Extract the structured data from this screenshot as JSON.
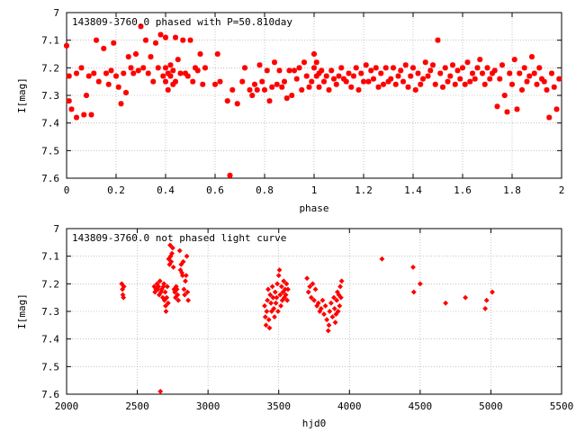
{
  "chart_data": [
    {
      "type": "scatter",
      "title": "143809-3760.0 phased with P=50.810day",
      "xlabel": "phase",
      "ylabel": "I[mag]",
      "xlim": [
        0,
        2
      ],
      "ylim": [
        7.6,
        7.0
      ],
      "y_inverted": true,
      "xticks": [
        "0",
        "0.2",
        "0.4",
        "0.6",
        "0.8",
        "1",
        "1.2",
        "1.4",
        "1.6",
        "1.8",
        "2"
      ],
      "xtick_values": [
        0,
        0.2,
        0.4,
        0.6,
        0.8,
        1.0,
        1.2,
        1.4,
        1.6,
        1.8,
        2.0
      ],
      "yticks": [
        "7",
        "7.1",
        "7.2",
        "7.3",
        "7.4",
        "7.5",
        "7.6"
      ],
      "ytick_values": [
        7.0,
        7.1,
        7.2,
        7.3,
        7.4,
        7.5,
        7.6
      ],
      "marker": "star",
      "color": "#ff0000",
      "points": [
        [
          0.0,
          7.12
        ],
        [
          0.01,
          7.23
        ],
        [
          0.01,
          7.32
        ],
        [
          0.02,
          7.35
        ],
        [
          0.04,
          7.38
        ],
        [
          0.04,
          7.22
        ],
        [
          0.06,
          7.2
        ],
        [
          0.07,
          7.37
        ],
        [
          0.08,
          7.3
        ],
        [
          0.09,
          7.23
        ],
        [
          0.1,
          7.37
        ],
        [
          0.11,
          7.22
        ],
        [
          0.12,
          7.1
        ],
        [
          0.13,
          7.25
        ],
        [
          0.15,
          7.13
        ],
        [
          0.16,
          7.22
        ],
        [
          0.17,
          7.26
        ],
        [
          0.18,
          7.21
        ],
        [
          0.19,
          7.11
        ],
        [
          0.2,
          7.23
        ],
        [
          0.21,
          7.27
        ],
        [
          0.22,
          7.33
        ],
        [
          0.23,
          7.22
        ],
        [
          0.24,
          7.29
        ],
        [
          0.25,
          7.16
        ],
        [
          0.26,
          7.2
        ],
        [
          0.27,
          7.22
        ],
        [
          0.28,
          7.15
        ],
        [
          0.29,
          7.21
        ],
        [
          0.3,
          7.05
        ],
        [
          0.31,
          7.2
        ],
        [
          0.32,
          7.1
        ],
        [
          0.33,
          7.22
        ],
        [
          0.34,
          7.16
        ],
        [
          0.35,
          7.25
        ],
        [
          0.36,
          7.11
        ],
        [
          0.37,
          7.2
        ],
        [
          0.38,
          7.08
        ],
        [
          0.39,
          7.23
        ],
        [
          0.4,
          7.09
        ],
        [
          0.4,
          7.25
        ],
        [
          0.4,
          7.2
        ],
        [
          0.41,
          7.22
        ],
        [
          0.41,
          7.28
        ],
        [
          0.42,
          7.23
        ],
        [
          0.42,
          7.19
        ],
        [
          0.43,
          7.26
        ],
        [
          0.43,
          7.21
        ],
        [
          0.44,
          7.09
        ],
        [
          0.44,
          7.25
        ],
        [
          0.45,
          7.17
        ],
        [
          0.46,
          7.22
        ],
        [
          0.47,
          7.1
        ],
        [
          0.48,
          7.22
        ],
        [
          0.49,
          7.23
        ],
        [
          0.5,
          7.1
        ],
        [
          0.51,
          7.25
        ],
        [
          0.52,
          7.2
        ],
        [
          0.53,
          7.21
        ],
        [
          0.54,
          7.15
        ],
        [
          0.55,
          7.26
        ],
        [
          0.56,
          7.2
        ],
        [
          0.6,
          7.26
        ],
        [
          0.61,
          7.15
        ],
        [
          0.62,
          7.25
        ],
        [
          0.65,
          7.32
        ],
        [
          0.66,
          7.59
        ],
        [
          0.67,
          7.28
        ],
        [
          0.69,
          7.33
        ],
        [
          0.71,
          7.25
        ],
        [
          0.72,
          7.2
        ],
        [
          0.74,
          7.28
        ],
        [
          0.75,
          7.3
        ],
        [
          0.76,
          7.26
        ],
        [
          0.77,
          7.28
        ],
        [
          0.78,
          7.19
        ],
        [
          0.79,
          7.25
        ],
        [
          0.8,
          7.28
        ],
        [
          0.81,
          7.21
        ],
        [
          0.82,
          7.32
        ],
        [
          0.83,
          7.27
        ],
        [
          0.84,
          7.18
        ],
        [
          0.85,
          7.26
        ],
        [
          0.86,
          7.21
        ],
        [
          0.87,
          7.27
        ],
        [
          0.88,
          7.25
        ],
        [
          0.89,
          7.31
        ],
        [
          0.9,
          7.21
        ],
        [
          0.91,
          7.3
        ],
        [
          0.92,
          7.21
        ],
        [
          0.93,
          7.24
        ],
        [
          0.94,
          7.2
        ],
        [
          0.95,
          7.28
        ],
        [
          0.96,
          7.18
        ],
        [
          0.97,
          7.23
        ],
        [
          0.98,
          7.27
        ],
        [
          0.99,
          7.25
        ],
        [
          1.0,
          7.15
        ],
        [
          1.0,
          7.2
        ],
        [
          1.01,
          7.23
        ],
        [
          1.01,
          7.18
        ],
        [
          1.02,
          7.22
        ],
        [
          1.02,
          7.27
        ],
        [
          1.03,
          7.21
        ],
        [
          1.04,
          7.25
        ],
        [
          1.05,
          7.23
        ],
        [
          1.06,
          7.28
        ],
        [
          1.07,
          7.21
        ],
        [
          1.08,
          7.24
        ],
        [
          1.09,
          7.26
        ],
        [
          1.1,
          7.23
        ],
        [
          1.11,
          7.2
        ],
        [
          1.12,
          7.24
        ],
        [
          1.13,
          7.25
        ],
        [
          1.14,
          7.22
        ],
        [
          1.15,
          7.27
        ],
        [
          1.16,
          7.23
        ],
        [
          1.17,
          7.2
        ],
        [
          1.18,
          7.28
        ],
        [
          1.19,
          7.22
        ],
        [
          1.2,
          7.25
        ],
        [
          1.21,
          7.19
        ],
        [
          1.22,
          7.25
        ],
        [
          1.23,
          7.21
        ],
        [
          1.24,
          7.24
        ],
        [
          1.25,
          7.2
        ],
        [
          1.26,
          7.27
        ],
        [
          1.27,
          7.22
        ],
        [
          1.28,
          7.26
        ],
        [
          1.29,
          7.2
        ],
        [
          1.3,
          7.25
        ],
        [
          1.31,
          7.24
        ],
        [
          1.32,
          7.2
        ],
        [
          1.33,
          7.26
        ],
        [
          1.34,
          7.23
        ],
        [
          1.35,
          7.21
        ],
        [
          1.36,
          7.25
        ],
        [
          1.37,
          7.19
        ],
        [
          1.38,
          7.27
        ],
        [
          1.39,
          7.23
        ],
        [
          1.4,
          7.2
        ],
        [
          1.41,
          7.28
        ],
        [
          1.42,
          7.22
        ],
        [
          1.43,
          7.26
        ],
        [
          1.44,
          7.24
        ],
        [
          1.45,
          7.18
        ],
        [
          1.46,
          7.23
        ],
        [
          1.47,
          7.21
        ],
        [
          1.48,
          7.19
        ],
        [
          1.49,
          7.26
        ],
        [
          1.5,
          7.1
        ],
        [
          1.51,
          7.22
        ],
        [
          1.52,
          7.27
        ],
        [
          1.53,
          7.2
        ],
        [
          1.54,
          7.25
        ],
        [
          1.55,
          7.23
        ],
        [
          1.56,
          7.19
        ],
        [
          1.57,
          7.26
        ],
        [
          1.58,
          7.21
        ],
        [
          1.59,
          7.24
        ],
        [
          1.6,
          7.2
        ],
        [
          1.61,
          7.26
        ],
        [
          1.62,
          7.18
        ],
        [
          1.63,
          7.25
        ],
        [
          1.64,
          7.22
        ],
        [
          1.65,
          7.24
        ],
        [
          1.66,
          7.2
        ],
        [
          1.67,
          7.17
        ],
        [
          1.68,
          7.22
        ],
        [
          1.69,
          7.26
        ],
        [
          1.7,
          7.2
        ],
        [
          1.71,
          7.24
        ],
        [
          1.72,
          7.22
        ],
        [
          1.73,
          7.21
        ],
        [
          1.74,
          7.34
        ],
        [
          1.75,
          7.24
        ],
        [
          1.76,
          7.19
        ],
        [
          1.77,
          7.3
        ],
        [
          1.78,
          7.36
        ],
        [
          1.79,
          7.22
        ],
        [
          1.8,
          7.26
        ],
        [
          1.81,
          7.17
        ],
        [
          1.82,
          7.35
        ],
        [
          1.83,
          7.22
        ],
        [
          1.84,
          7.28
        ],
        [
          1.85,
          7.2
        ],
        [
          1.86,
          7.25
        ],
        [
          1.87,
          7.23
        ],
        [
          1.88,
          7.16
        ],
        [
          1.89,
          7.22
        ],
        [
          1.9,
          7.26
        ],
        [
          1.91,
          7.2
        ],
        [
          1.92,
          7.24
        ],
        [
          1.93,
          7.25
        ],
        [
          1.94,
          7.28
        ],
        [
          1.95,
          7.38
        ],
        [
          1.96,
          7.22
        ],
        [
          1.97,
          7.27
        ],
        [
          1.98,
          7.35
        ],
        [
          1.99,
          7.24
        ]
      ]
    },
    {
      "type": "scatter",
      "title": "143809-3760.0 not phased light curve",
      "xlabel": "hjd0",
      "ylabel": "I[mag]",
      "xlim": [
        2000,
        5500
      ],
      "ylim": [
        7.6,
        7.0
      ],
      "y_inverted": true,
      "xticks": [
        "2000",
        "2500",
        "3000",
        "3500",
        "4000",
        "4500",
        "5000",
        "5500"
      ],
      "xtick_values": [
        2000,
        2500,
        3000,
        3500,
        4000,
        4500,
        5000,
        5500
      ],
      "yticks": [
        "7",
        "7.1",
        "7.2",
        "7.3",
        "7.4",
        "7.5",
        "7.6"
      ],
      "ytick_values": [
        7.0,
        7.1,
        7.2,
        7.3,
        7.4,
        7.5,
        7.6
      ],
      "marker": "diamond",
      "color": "#ff0000",
      "points": [
        [
          2390,
          7.2
        ],
        [
          2395,
          7.22
        ],
        [
          2398,
          7.24
        ],
        [
          2402,
          7.25
        ],
        [
          2405,
          7.21
        ],
        [
          2620,
          7.21
        ],
        [
          2625,
          7.23
        ],
        [
          2632,
          7.22
        ],
        [
          2640,
          7.2
        ],
        [
          2645,
          7.22
        ],
        [
          2650,
          7.21
        ],
        [
          2655,
          7.24
        ],
        [
          2660,
          7.19
        ],
        [
          2663,
          7.59
        ],
        [
          2668,
          7.23
        ],
        [
          2673,
          7.22
        ],
        [
          2680,
          7.25
        ],
        [
          2685,
          7.21
        ],
        [
          2688,
          7.2
        ],
        [
          2692,
          7.26
        ],
        [
          2697,
          7.23
        ],
        [
          2700,
          7.28
        ],
        [
          2703,
          7.3
        ],
        [
          2708,
          7.25
        ],
        [
          2712,
          7.21
        ],
        [
          2718,
          7.27
        ],
        [
          2722,
          7.11
        ],
        [
          2728,
          7.13
        ],
        [
          2732,
          7.06
        ],
        [
          2736,
          7.1
        ],
        [
          2740,
          7.12
        ],
        [
          2745,
          7.09
        ],
        [
          2750,
          7.07
        ],
        [
          2755,
          7.14
        ],
        [
          2760,
          7.22
        ],
        [
          2765,
          7.23
        ],
        [
          2770,
          7.25
        ],
        [
          2775,
          7.21
        ],
        [
          2780,
          7.22
        ],
        [
          2785,
          7.24
        ],
        [
          2790,
          7.26
        ],
        [
          2800,
          7.08
        ],
        [
          2805,
          7.15
        ],
        [
          2810,
          7.13
        ],
        [
          2815,
          7.16
        ],
        [
          2820,
          7.17
        ],
        [
          2825,
          7.12
        ],
        [
          2830,
          7.22
        ],
        [
          2835,
          7.24
        ],
        [
          2840,
          7.19
        ],
        [
          2845,
          7.17
        ],
        [
          2850,
          7.1
        ],
        [
          2855,
          7.23
        ],
        [
          2860,
          7.26
        ],
        [
          3400,
          7.28
        ],
        [
          3405,
          7.32
        ],
        [
          3410,
          7.35
        ],
        [
          3415,
          7.3
        ],
        [
          3420,
          7.26
        ],
        [
          3425,
          7.22
        ],
        [
          3430,
          7.33
        ],
        [
          3435,
          7.36
        ],
        [
          3440,
          7.24
        ],
        [
          3445,
          7.27
        ],
        [
          3450,
          7.3
        ],
        [
          3455,
          7.21
        ],
        [
          3460,
          7.25
        ],
        [
          3465,
          7.29
        ],
        [
          3470,
          7.32
        ],
        [
          3475,
          7.23
        ],
        [
          3480,
          7.27
        ],
        [
          3485,
          7.25
        ],
        [
          3490,
          7.2
        ],
        [
          3495,
          7.3
        ],
        [
          3500,
          7.17
        ],
        [
          3505,
          7.15
        ],
        [
          3510,
          7.24
        ],
        [
          3515,
          7.28
        ],
        [
          3520,
          7.21
        ],
        [
          3525,
          7.26
        ],
        [
          3530,
          7.23
        ],
        [
          3535,
          7.19
        ],
        [
          3540,
          7.25
        ],
        [
          3545,
          7.22
        ],
        [
          3550,
          7.24
        ],
        [
          3555,
          7.2
        ],
        [
          3560,
          7.26
        ],
        [
          3565,
          7.22
        ],
        [
          3700,
          7.18
        ],
        [
          3710,
          7.23
        ],
        [
          3720,
          7.21
        ],
        [
          3730,
          7.25
        ],
        [
          3740,
          7.2
        ],
        [
          3750,
          7.26
        ],
        [
          3760,
          7.22
        ],
        [
          3770,
          7.28
        ],
        [
          3780,
          7.27
        ],
        [
          3790,
          7.3
        ],
        [
          3800,
          7.29
        ],
        [
          3810,
          7.26
        ],
        [
          3820,
          7.31
        ],
        [
          3830,
          7.28
        ],
        [
          3840,
          7.33
        ],
        [
          3850,
          7.37
        ],
        [
          3855,
          7.35
        ],
        [
          3860,
          7.3
        ],
        [
          3870,
          7.27
        ],
        [
          3880,
          7.32
        ],
        [
          3890,
          7.25
        ],
        [
          3895,
          7.29
        ],
        [
          3900,
          7.34
        ],
        [
          3905,
          7.31
        ],
        [
          3910,
          7.26
        ],
        [
          3915,
          7.23
        ],
        [
          3920,
          7.3
        ],
        [
          3925,
          7.24
        ],
        [
          3930,
          7.28
        ],
        [
          3935,
          7.21
        ],
        [
          3940,
          7.25
        ],
        [
          3945,
          7.19
        ],
        [
          4230,
          7.11
        ],
        [
          4450,
          7.14
        ],
        [
          4455,
          7.23
        ],
        [
          4500,
          7.2
        ],
        [
          4680,
          7.27
        ],
        [
          4820,
          7.25
        ],
        [
          4960,
          7.29
        ],
        [
          4970,
          7.26
        ],
        [
          5010,
          7.23
        ]
      ]
    }
  ]
}
